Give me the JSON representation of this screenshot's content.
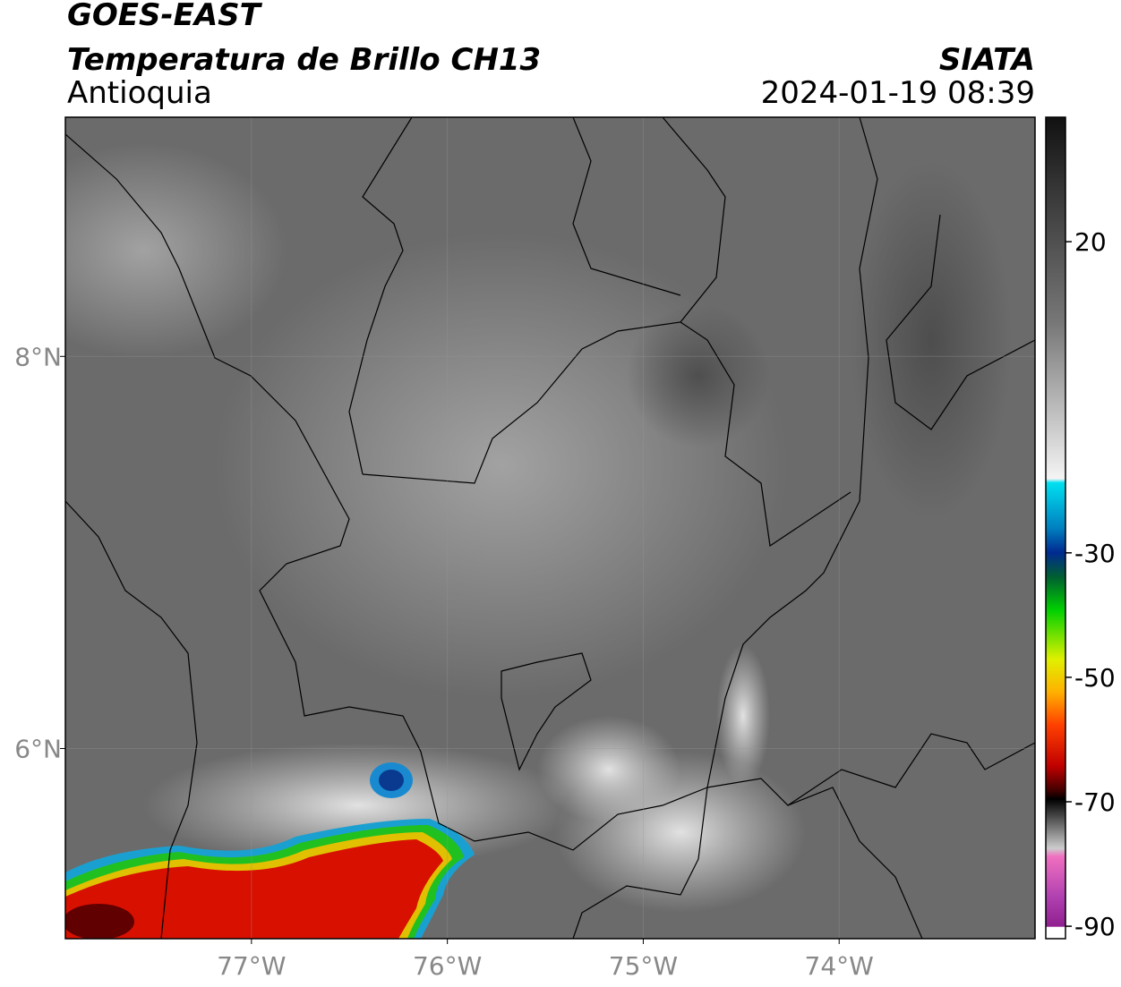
{
  "header": {
    "title": "GOES-EAST",
    "subtitle": "Temperatura de Brillo CH13",
    "region": "Antioquia",
    "source": "SIATA",
    "datetime": "2024-01-19 08:39"
  },
  "map": {
    "xlim": [
      -77.95,
      -73
    ],
    "ylim": [
      5.03,
      9.22
    ],
    "xticks": [
      {
        "value": -77,
        "label": "77°W"
      },
      {
        "value": -76,
        "label": "76°W"
      },
      {
        "value": -75,
        "label": "75°W"
      },
      {
        "value": -74,
        "label": "74°W"
      }
    ],
    "yticks": [
      {
        "value": 8,
        "label": "8°N"
      },
      {
        "value": 6,
        "label": "6°N"
      }
    ],
    "grid": true
  },
  "colorbar": {
    "lim": [
      -92,
      40
    ],
    "ticks": [
      20,
      -30,
      -50,
      -70,
      -90
    ]
  }
}
